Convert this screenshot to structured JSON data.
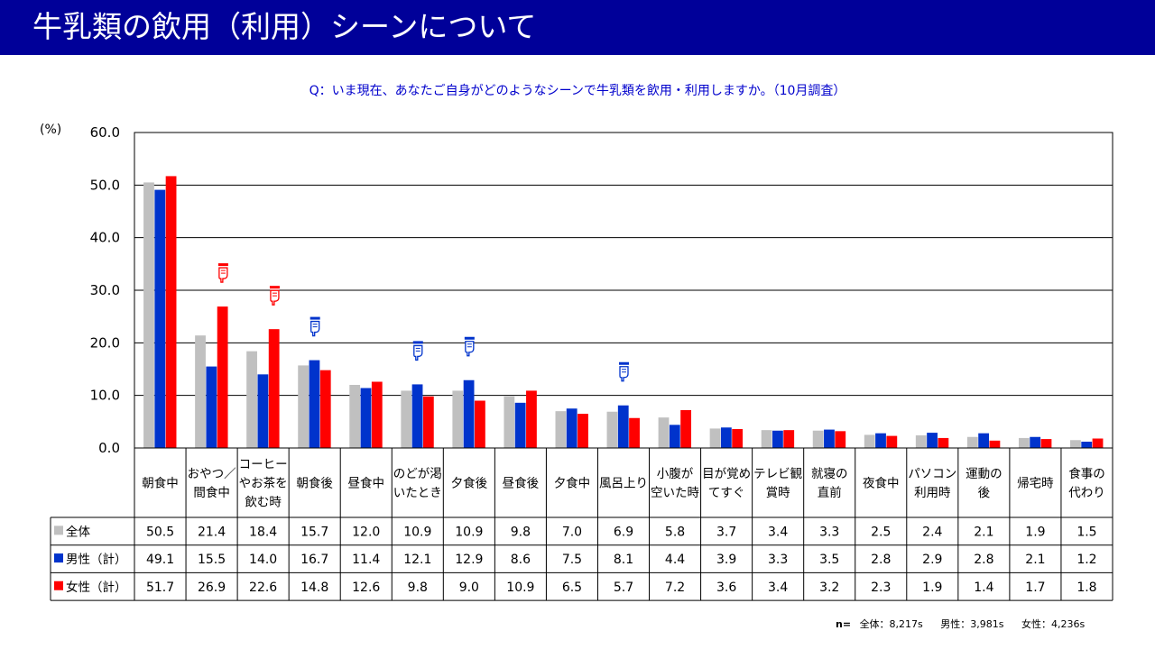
{
  "header": {
    "title": "牛乳類の飲用（利用）シーンについて"
  },
  "question": "Q：いま現在、あなたご自身がどのようなシーンで牛乳類を飲用・利用しますか。（10月調査）",
  "y_unit": "(%)",
  "footnote": {
    "n_label": "n=",
    "items": [
      "全体：8,217s",
      "男性：3,981s",
      "女性：4,236s"
    ]
  },
  "chart_data": {
    "type": "bar",
    "ylim": [
      0,
      60
    ],
    "yticks": [
      "0.0",
      "10.0",
      "20.0",
      "30.0",
      "40.0",
      "50.0",
      "60.0"
    ],
    "grid": true,
    "categories": [
      [
        "朝食中"
      ],
      [
        "おやつ／",
        "間食中"
      ],
      [
        "コーヒー",
        "やお茶を",
        "飲む時"
      ],
      [
        "朝食後"
      ],
      [
        "昼食中"
      ],
      [
        "のどが渇",
        "いたとき"
      ],
      [
        "夕食後"
      ],
      [
        "昼食後"
      ],
      [
        "夕食中"
      ],
      [
        "風呂上り"
      ],
      [
        "小腹が",
        "空いた時"
      ],
      [
        "目が覚め",
        "てすぐ"
      ],
      [
        "テレビ観",
        "賞時"
      ],
      [
        "就寝の",
        "直前"
      ],
      [
        "夜食中"
      ],
      [
        "パソコン",
        "利用時"
      ],
      [
        "運動の",
        "後"
      ],
      [
        "帰宅時"
      ],
      [
        "食事の",
        "代わり"
      ]
    ],
    "series": [
      {
        "name": "全体",
        "color": "#c0c0c0",
        "values": [
          50.5,
          21.4,
          18.4,
          15.7,
          12.0,
          10.9,
          10.9,
          9.8,
          7.0,
          6.9,
          5.8,
          3.7,
          3.4,
          3.3,
          2.5,
          2.4,
          2.1,
          1.9,
          1.5
        ],
        "labels": [
          "50.5",
          "21.4",
          "18.4",
          "15.7",
          "12.0",
          "10.9",
          "10.9",
          "9.8",
          "7.0",
          "6.9",
          "5.8",
          "3.7",
          "3.4",
          "3.3",
          "2.5",
          "2.4",
          "2.1",
          "1.9",
          "1.5"
        ]
      },
      {
        "name": "男性（計）",
        "color": "#0033cc",
        "values": [
          49.1,
          15.5,
          14.0,
          16.7,
          11.4,
          12.1,
          12.9,
          8.6,
          7.5,
          8.1,
          4.4,
          3.9,
          3.3,
          3.5,
          2.8,
          2.9,
          2.8,
          2.1,
          1.2
        ],
        "labels": [
          "49.1",
          "15.5",
          "14.0",
          "16.7",
          "11.4",
          "12.1",
          "12.9",
          "8.6",
          "7.5",
          "8.1",
          "4.4",
          "3.9",
          "3.3",
          "3.5",
          "2.8",
          "2.9",
          "2.8",
          "2.1",
          "1.2"
        ]
      },
      {
        "name": "女性（計）",
        "color": "#ff0000",
        "values": [
          51.7,
          26.9,
          22.6,
          14.8,
          12.6,
          9.8,
          9.0,
          10.9,
          6.5,
          5.7,
          7.2,
          3.6,
          3.4,
          3.2,
          2.3,
          1.9,
          1.4,
          1.7,
          1.8
        ],
        "labels": [
          "51.7",
          "26.9",
          "22.6",
          "14.8",
          "12.6",
          "9.8",
          "9.0",
          "10.9",
          "6.5",
          "5.7",
          "7.2",
          "3.6",
          "3.4",
          "3.2",
          "2.3",
          "1.9",
          "1.4",
          "1.7",
          "1.8"
        ]
      }
    ],
    "markers": [
      {
        "category": 1,
        "series": 2,
        "icon": "pointing-down-hand-icon",
        "color": "#ff0000"
      },
      {
        "category": 2,
        "series": 2,
        "icon": "pointing-down-hand-icon",
        "color": "#ff0000"
      },
      {
        "category": 3,
        "series": 1,
        "icon": "pointing-down-hand-icon",
        "color": "#0033cc"
      },
      {
        "category": 5,
        "series": 1,
        "icon": "pointing-down-hand-icon",
        "color": "#0033cc"
      },
      {
        "category": 6,
        "series": 1,
        "icon": "pointing-down-hand-icon",
        "color": "#0033cc"
      },
      {
        "category": 9,
        "series": 1,
        "icon": "pointing-down-hand-icon",
        "color": "#0033cc"
      }
    ]
  }
}
